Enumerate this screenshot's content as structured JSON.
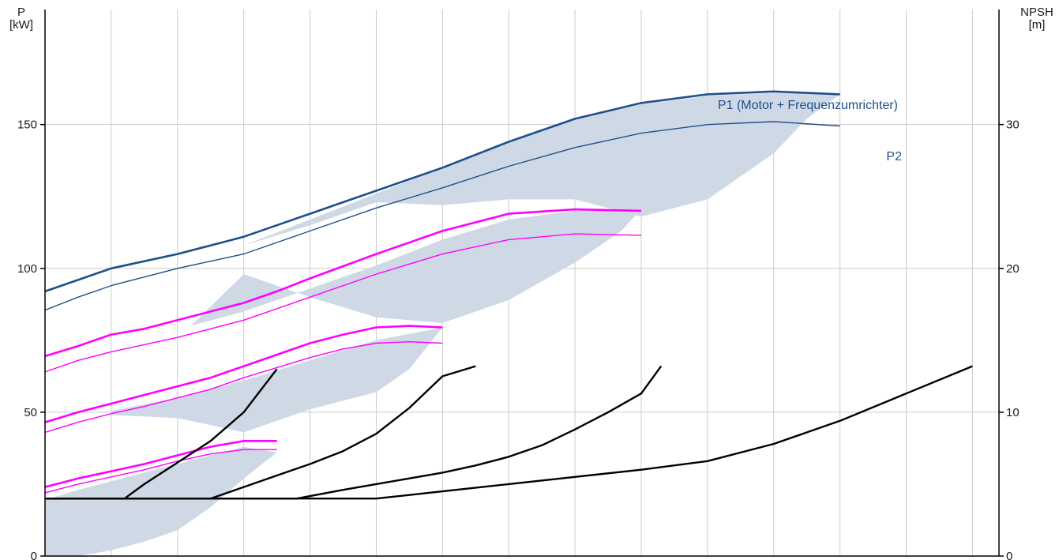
{
  "chart_data": {
    "type": "line",
    "x_range": [
      0,
      14.4
    ],
    "left_axis": {
      "title_line1": "P",
      "title_line2": "[kW]",
      "range": [
        0,
        190
      ],
      "ticks": [
        0,
        50,
        100,
        150
      ]
    },
    "right_axis": {
      "title_line1": "NPSH",
      "title_line2": "[m]",
      "range": [
        0,
        38
      ],
      "ticks": [
        0,
        10,
        20,
        30
      ]
    },
    "grid": true,
    "colors": {
      "p_max": "#1f4f8a",
      "p_stage": "#ff00ff",
      "npsh": "#000000",
      "band": "#cfd9e6",
      "grid": "#cccccc"
    },
    "labels": {
      "p1": "P1 (Motor + Frequenzumrichter)",
      "p2": "P2"
    },
    "series": [
      {
        "group": "P1-max",
        "axis": "left",
        "color": "p_max",
        "points": [
          [
            0,
            92
          ],
          [
            0.5,
            96
          ],
          [
            1,
            100
          ],
          [
            1.5,
            102.5
          ],
          [
            2,
            105
          ],
          [
            2.5,
            108
          ],
          [
            3,
            111
          ],
          [
            3.5,
            115
          ],
          [
            4,
            119
          ],
          [
            4.5,
            123
          ],
          [
            5,
            127
          ],
          [
            6,
            135
          ],
          [
            7,
            144
          ],
          [
            8,
            152
          ],
          [
            9,
            157.5
          ],
          [
            10,
            160.5
          ],
          [
            11,
            161.5
          ],
          [
            12,
            160.5
          ]
        ]
      },
      {
        "group": "P2-max",
        "axis": "left",
        "color": "p_max",
        "points": [
          [
            0,
            85.5
          ],
          [
            0.5,
            90
          ],
          [
            1,
            94
          ],
          [
            1.5,
            97
          ],
          [
            2,
            100
          ],
          [
            2.5,
            102.5
          ],
          [
            3,
            105
          ],
          [
            3.5,
            109
          ],
          [
            4,
            113
          ],
          [
            5,
            121
          ],
          [
            6,
            128
          ],
          [
            7,
            135.5
          ],
          [
            8,
            142
          ],
          [
            9,
            147
          ],
          [
            10,
            150
          ],
          [
            11,
            151
          ],
          [
            12,
            149.5
          ]
        ]
      },
      {
        "group": "P1-stage",
        "axis": "left",
        "color": "p_stage",
        "points": [
          [
            0,
            69.5
          ],
          [
            0.5,
            73
          ],
          [
            1,
            77
          ],
          [
            1.5,
            79
          ],
          [
            2,
            82
          ],
          [
            2.5,
            85
          ],
          [
            3,
            88
          ],
          [
            3.5,
            92
          ],
          [
            4,
            96.5
          ],
          [
            5,
            105
          ],
          [
            6,
            113
          ],
          [
            7,
            119
          ],
          [
            8,
            120.5
          ],
          [
            9,
            120
          ]
        ]
      },
      {
        "group": "P2-stage",
        "axis": "left",
        "color": "p_stage",
        "points": [
          [
            0,
            64
          ],
          [
            0.5,
            68
          ],
          [
            1,
            71
          ],
          [
            1.5,
            73.5
          ],
          [
            2,
            76
          ],
          [
            2.5,
            79
          ],
          [
            3,
            82
          ],
          [
            3.5,
            86
          ],
          [
            4,
            90
          ],
          [
            5,
            98
          ],
          [
            6,
            105
          ],
          [
            7,
            110
          ],
          [
            8,
            112
          ],
          [
            9,
            111.5
          ]
        ]
      },
      {
        "group": "P1-stage",
        "axis": "left",
        "color": "p_stage",
        "points": [
          [
            0,
            46.5
          ],
          [
            0.5,
            50
          ],
          [
            1,
            53
          ],
          [
            1.5,
            56
          ],
          [
            2,
            59
          ],
          [
            2.5,
            62
          ],
          [
            3,
            66
          ],
          [
            3.5,
            70
          ],
          [
            4,
            74
          ],
          [
            4.5,
            77
          ],
          [
            5,
            79.5
          ],
          [
            5.5,
            80
          ],
          [
            6,
            79.5
          ]
        ]
      },
      {
        "group": "P2-stage",
        "axis": "left",
        "color": "p_stage",
        "points": [
          [
            0,
            43
          ],
          [
            0.5,
            46.5
          ],
          [
            1,
            49.5
          ],
          [
            1.5,
            52
          ],
          [
            2,
            55
          ],
          [
            2.5,
            58
          ],
          [
            3,
            62
          ],
          [
            3.5,
            65.5
          ],
          [
            4,
            69
          ],
          [
            4.5,
            72
          ],
          [
            5,
            74
          ],
          [
            5.5,
            74.5
          ],
          [
            6,
            74
          ]
        ]
      },
      {
        "group": "P1-stage",
        "axis": "left",
        "color": "p_stage",
        "points": [
          [
            0,
            24
          ],
          [
            0.5,
            27
          ],
          [
            1,
            29.5
          ],
          [
            1.5,
            32
          ],
          [
            2,
            35
          ],
          [
            2.5,
            38
          ],
          [
            3,
            40
          ],
          [
            3.5,
            40
          ]
        ]
      },
      {
        "group": "P2-stage",
        "axis": "left",
        "color": "p_stage",
        "points": [
          [
            0,
            22
          ],
          [
            0.5,
            25
          ],
          [
            1,
            27.5
          ],
          [
            1.5,
            30
          ],
          [
            2,
            33
          ],
          [
            2.5,
            35.5
          ],
          [
            3,
            37
          ],
          [
            3.5,
            37
          ]
        ]
      },
      {
        "group": "NPSH",
        "axis": "right",
        "color": "npsh",
        "points": [
          [
            0,
            4
          ],
          [
            1.2,
            4
          ],
          [
            1.5,
            5
          ],
          [
            2,
            6.5
          ],
          [
            2.5,
            8
          ],
          [
            3,
            10
          ],
          [
            3.5,
            13
          ]
        ]
      },
      {
        "group": "NPSH",
        "axis": "right",
        "color": "npsh",
        "points": [
          [
            0,
            4
          ],
          [
            2.5,
            4
          ],
          [
            3,
            4.8
          ],
          [
            3.5,
            5.6
          ],
          [
            4,
            6.4
          ],
          [
            4.5,
            7.3
          ],
          [
            5,
            8.5
          ],
          [
            5.5,
            10.3
          ],
          [
            6,
            12.5
          ],
          [
            6.5,
            13.2
          ]
        ]
      },
      {
        "group": "NPSH",
        "axis": "right",
        "color": "npsh",
        "points": [
          [
            0,
            4
          ],
          [
            3.8,
            4
          ],
          [
            4.5,
            4.6
          ],
          [
            5,
            5
          ],
          [
            5.5,
            5.4
          ],
          [
            6,
            5.8
          ],
          [
            6.5,
            6.3
          ],
          [
            7,
            6.9
          ],
          [
            7.5,
            7.7
          ],
          [
            8,
            8.8
          ],
          [
            8.5,
            10
          ],
          [
            9,
            11.3
          ],
          [
            9.3,
            13.2
          ]
        ]
      },
      {
        "group": "NPSH",
        "axis": "right",
        "color": "npsh",
        "points": [
          [
            0,
            4
          ],
          [
            5,
            4
          ],
          [
            6,
            4.5
          ],
          [
            7,
            5
          ],
          [
            8,
            5.5
          ],
          [
            9,
            6
          ],
          [
            10,
            6.6
          ],
          [
            11,
            7.8
          ],
          [
            12,
            9.4
          ],
          [
            13,
            11.3
          ],
          [
            14,
            13.2
          ]
        ]
      }
    ],
    "bands": [
      {
        "points": [
          [
            0,
            19.5
          ],
          [
            0.5,
            23
          ],
          [
            1,
            26
          ],
          [
            1.5,
            29
          ],
          [
            2,
            32
          ],
          [
            2.5,
            35
          ],
          [
            3,
            38
          ],
          [
            3.5,
            36
          ],
          [
            3,
            27
          ],
          [
            2.5,
            17
          ],
          [
            2,
            9
          ],
          [
            1.5,
            5
          ],
          [
            1,
            2
          ],
          [
            0.5,
            0
          ],
          [
            0,
            0
          ]
        ]
      },
      {
        "points": [
          [
            1,
            50.5
          ],
          [
            2,
            55
          ],
          [
            3,
            61
          ],
          [
            4,
            68
          ],
          [
            5,
            75
          ],
          [
            6,
            79.5
          ],
          [
            5.5,
            65
          ],
          [
            5,
            57
          ],
          [
            4,
            51
          ],
          [
            3.5,
            47
          ],
          [
            3,
            43
          ],
          [
            2,
            48
          ],
          [
            1,
            49
          ]
        ]
      },
      {
        "points": [
          [
            2.2,
            80
          ],
          [
            3,
            85
          ],
          [
            4,
            93
          ],
          [
            5,
            101
          ],
          [
            6,
            110
          ],
          [
            7,
            117
          ],
          [
            8,
            120
          ],
          [
            9,
            120.5
          ],
          [
            8.7,
            113
          ],
          [
            8,
            102
          ],
          [
            7,
            89
          ],
          [
            6,
            81
          ],
          [
            5,
            83
          ],
          [
            4,
            90
          ],
          [
            3,
            98
          ],
          [
            2.2,
            80
          ]
        ]
      },
      {
        "points": [
          [
            3,
            108
          ],
          [
            4,
            117
          ],
          [
            5,
            126
          ],
          [
            6,
            135
          ],
          [
            7,
            144
          ],
          [
            8,
            152
          ],
          [
            9,
            157
          ],
          [
            10,
            160
          ],
          [
            11,
            161
          ],
          [
            12,
            160.5
          ],
          [
            11.5,
            152
          ],
          [
            11,
            140
          ],
          [
            10,
            124
          ],
          [
            9,
            118
          ],
          [
            8,
            124
          ],
          [
            7,
            124
          ],
          [
            6,
            122
          ],
          [
            5,
            123
          ],
          [
            4,
            115
          ],
          [
            3,
            108
          ]
        ]
      }
    ]
  }
}
